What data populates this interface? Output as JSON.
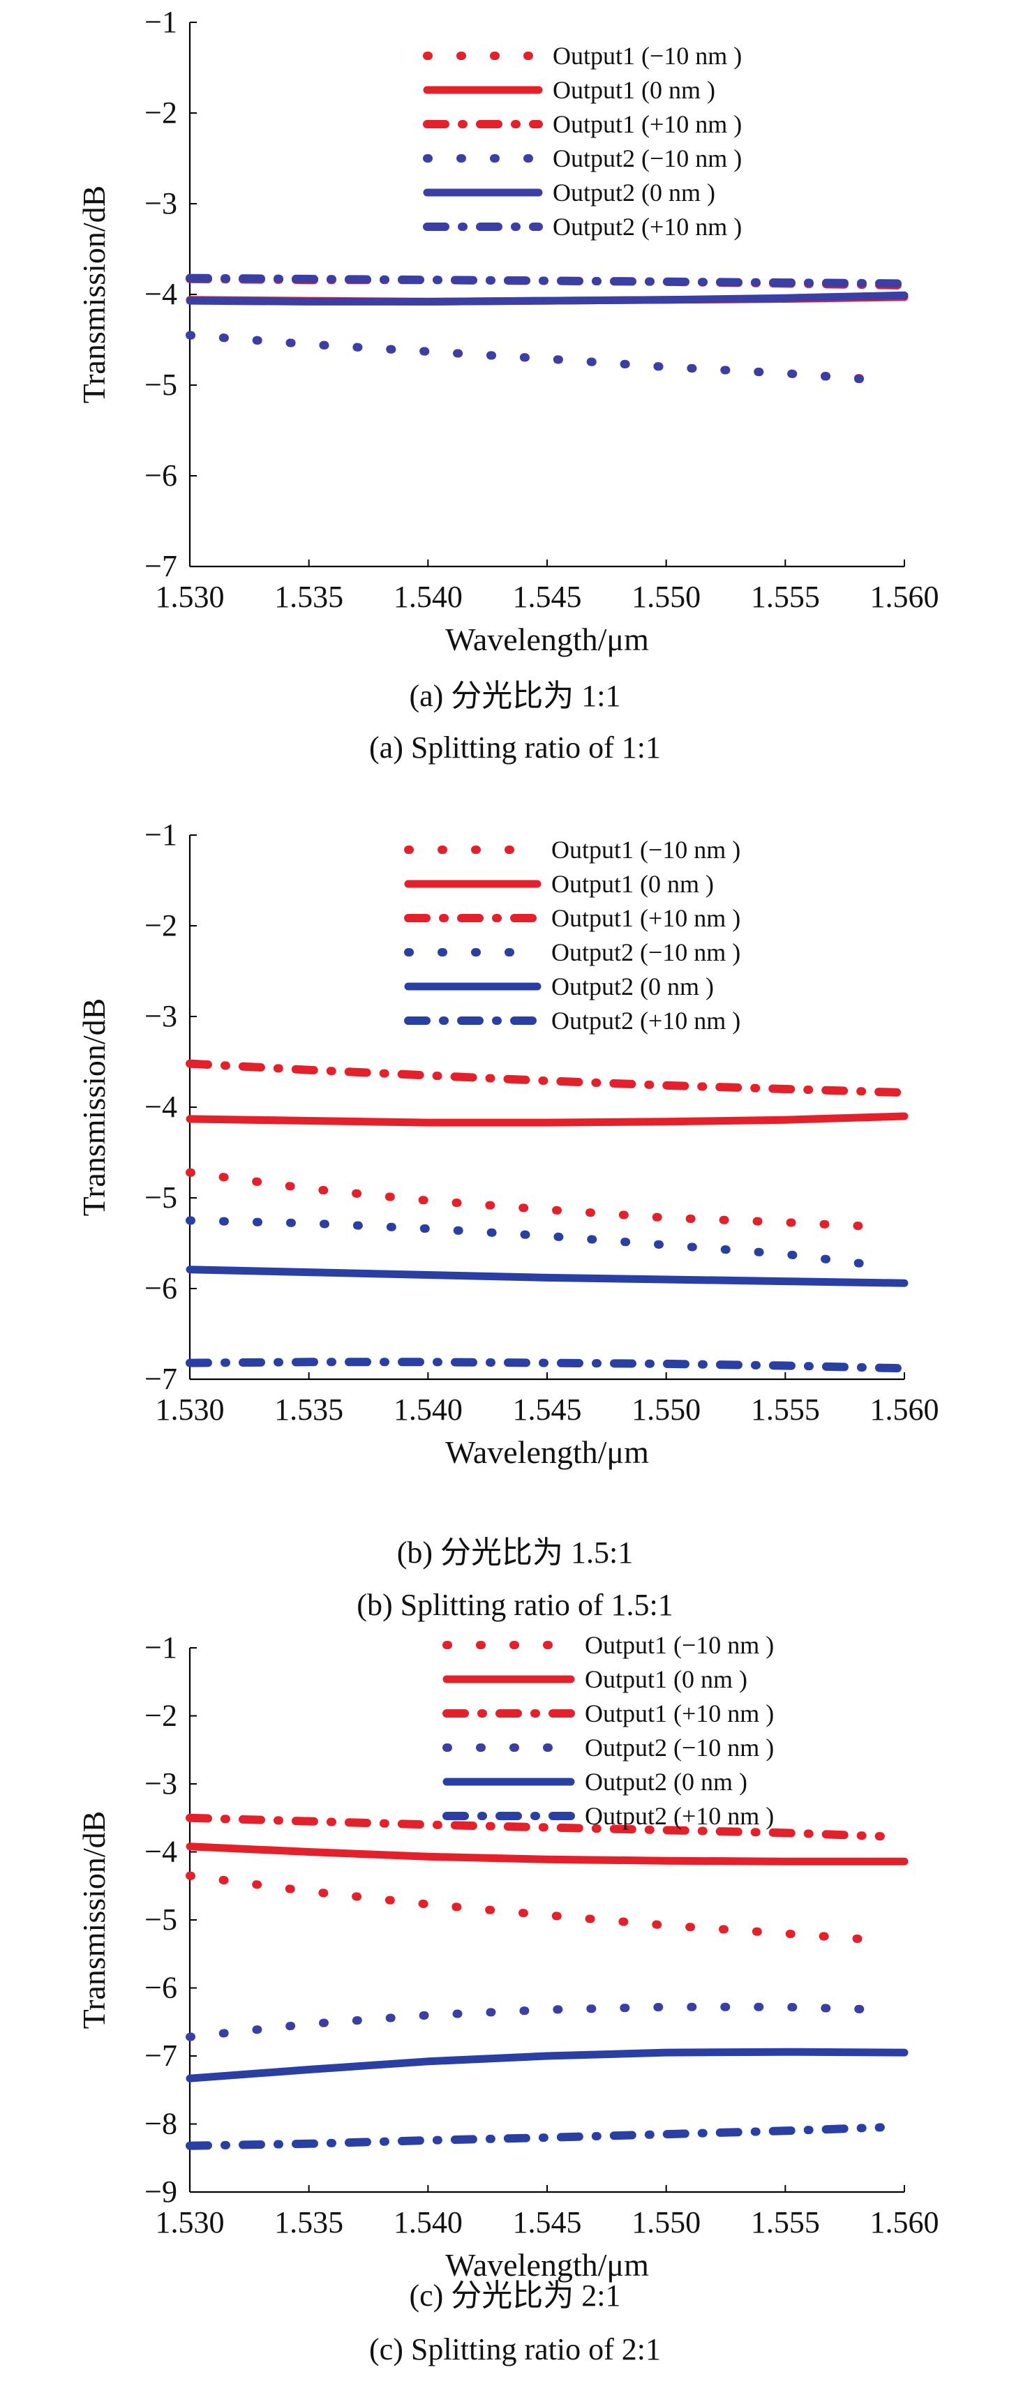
{
  "colors": {
    "output1": "#e4202b",
    "output2a": "#3a3fa6",
    "output2b": "#2a3fa3"
  },
  "chart_data": [
    {
      "type": "line",
      "xlabel": "Wavelength/μm",
      "ylabel": "Transmission/dB",
      "xlim": [
        1.53,
        1.56
      ],
      "ylim": [
        -7,
        -1
      ],
      "x_ticks": [
        "1.530",
        "1.535",
        "1.540",
        "1.545",
        "1.550",
        "1.555",
        "1.560"
      ],
      "y_ticks": [
        "−1",
        "−2",
        "−3",
        "−4",
        "−5",
        "−6",
        "−7"
      ],
      "legend_position": "top-right",
      "caption_cn": "(a) 分光比为 1:1",
      "caption_en": "(a) Splitting ratio of 1:1",
      "series": [
        {
          "name": "Output1 (−10 nm )",
          "style": "dotted",
          "color": "output1",
          "x": [
            1.53,
            1.535,
            1.54,
            1.545,
            1.55,
            1.555,
            1.559
          ],
          "y": [
            -4.45,
            -4.55,
            -4.63,
            -4.71,
            -4.8,
            -4.87,
            -4.94
          ]
        },
        {
          "name": "Output1 (0 nm )",
          "style": "solid",
          "color": "output1",
          "x": [
            1.53,
            1.535,
            1.54,
            1.545,
            1.55,
            1.555,
            1.56
          ],
          "y": [
            -4.06,
            -4.07,
            -4.08,
            -4.07,
            -4.06,
            -4.05,
            -4.03
          ]
        },
        {
          "name": "Output1 (+10 nm )",
          "style": "dashdot",
          "color": "output1",
          "x": [
            1.53,
            1.535,
            1.54,
            1.545,
            1.55,
            1.555,
            1.56
          ],
          "y": [
            -3.83,
            -3.84,
            -3.84,
            -3.85,
            -3.86,
            -3.88,
            -3.9
          ]
        },
        {
          "name": "Output2 (−10 nm )",
          "style": "dotted",
          "color": "output2a",
          "x": [
            1.53,
            1.535,
            1.54,
            1.545,
            1.55,
            1.555,
            1.559
          ],
          "y": [
            -4.45,
            -4.55,
            -4.63,
            -4.71,
            -4.8,
            -4.87,
            -4.95
          ]
        },
        {
          "name": "Output2 (0 nm )",
          "style": "solid",
          "color": "output2a",
          "x": [
            1.53,
            1.535,
            1.54,
            1.545,
            1.55,
            1.555,
            1.56
          ],
          "y": [
            -4.07,
            -4.08,
            -4.08,
            -4.07,
            -4.06,
            -4.04,
            -4.01
          ]
        },
        {
          "name": "Output2 (+10 nm )",
          "style": "dashdot",
          "color": "output2a",
          "x": [
            1.53,
            1.535,
            1.54,
            1.545,
            1.55,
            1.555,
            1.56
          ],
          "y": [
            -3.82,
            -3.83,
            -3.84,
            -3.85,
            -3.86,
            -3.87,
            -3.88
          ]
        }
      ]
    },
    {
      "type": "line",
      "xlabel": "Wavelength/μm",
      "ylabel": "Transmission/dB",
      "xlim": [
        1.53,
        1.56
      ],
      "ylim": [
        -7,
        -1
      ],
      "x_ticks": [
        "1.530",
        "1.535",
        "1.540",
        "1.545",
        "1.550",
        "1.555",
        "1.560"
      ],
      "y_ticks": [
        "−1",
        "−2",
        "−3",
        "−4",
        "−5",
        "−6",
        "−7"
      ],
      "legend_position": "top-right",
      "caption_cn": "(b) 分光比为 1.5:1",
      "caption_en": "(b) Splitting ratio of 1.5:1",
      "series": [
        {
          "name": "Output1 (−10 nm )",
          "style": "dotted",
          "color": "output1",
          "x": [
            1.53,
            1.535,
            1.54,
            1.545,
            1.55,
            1.555,
            1.559
          ],
          "y": [
            -4.72,
            -4.9,
            -5.03,
            -5.13,
            -5.22,
            -5.27,
            -5.32
          ]
        },
        {
          "name": "Output1 (0 nm )",
          "style": "solid",
          "color": "output1",
          "x": [
            1.53,
            1.535,
            1.54,
            1.545,
            1.55,
            1.555,
            1.56
          ],
          "y": [
            -4.13,
            -4.15,
            -4.17,
            -4.17,
            -4.16,
            -4.14,
            -4.1
          ]
        },
        {
          "name": "Output1 (+10 nm )",
          "style": "dashdot",
          "color": "output1",
          "x": [
            1.53,
            1.535,
            1.54,
            1.545,
            1.55,
            1.555,
            1.56
          ],
          "y": [
            -3.52,
            -3.59,
            -3.65,
            -3.71,
            -3.76,
            -3.8,
            -3.84
          ]
        },
        {
          "name": "Output2 (−10 nm )",
          "style": "dotted",
          "color": "output2b",
          "x": [
            1.53,
            1.535,
            1.54,
            1.545,
            1.55,
            1.555,
            1.559
          ],
          "y": [
            -5.25,
            -5.28,
            -5.34,
            -5.42,
            -5.52,
            -5.62,
            -5.75
          ]
        },
        {
          "name": "Output2 (0 nm )",
          "style": "solid",
          "color": "output2b",
          "x": [
            1.53,
            1.535,
            1.54,
            1.545,
            1.55,
            1.555,
            1.56
          ],
          "y": [
            -5.79,
            -5.82,
            -5.85,
            -5.88,
            -5.9,
            -5.92,
            -5.94
          ]
        },
        {
          "name": "Output2 (+10 nm )",
          "style": "dashdot",
          "color": "output2b",
          "x": [
            1.53,
            1.535,
            1.54,
            1.545,
            1.55,
            1.555,
            1.56
          ],
          "y": [
            -6.82,
            -6.81,
            -6.81,
            -6.82,
            -6.83,
            -6.85,
            -6.88
          ]
        }
      ]
    },
    {
      "type": "line",
      "xlabel": "Wavelength/μm",
      "ylabel": "Transmission/dB",
      "xlim": [
        1.53,
        1.56
      ],
      "ylim": [
        -9,
        -1
      ],
      "x_ticks": [
        "1.530",
        "1.535",
        "1.540",
        "1.545",
        "1.550",
        "1.555",
        "1.560"
      ],
      "y_ticks": [
        "−1",
        "−2",
        "−3",
        "−4",
        "−5",
        "−6",
        "−7",
        "−8",
        "−9"
      ],
      "legend_position": "top-right",
      "caption_cn": "(c) 分光比为 2:1",
      "caption_en": "(c) Splitting ratio of 2:1",
      "series": [
        {
          "name": "Output1 (−10 nm )",
          "style": "dotted",
          "color": "output1",
          "x": [
            1.53,
            1.535,
            1.54,
            1.545,
            1.55,
            1.555,
            1.559
          ],
          "y": [
            -4.35,
            -4.58,
            -4.77,
            -4.93,
            -5.08,
            -5.2,
            -5.3
          ]
        },
        {
          "name": "Output1 (0 nm )",
          "style": "solid",
          "color": "output1",
          "x": [
            1.53,
            1.535,
            1.54,
            1.545,
            1.55,
            1.555,
            1.56
          ],
          "y": [
            -3.92,
            -4.0,
            -4.07,
            -4.11,
            -4.13,
            -4.14,
            -4.14
          ]
        },
        {
          "name": "Output1 (+10 nm )",
          "style": "dashdot",
          "color": "output1",
          "x": [
            1.53,
            1.535,
            1.54,
            1.545,
            1.55,
            1.555,
            1.559
          ],
          "y": [
            -3.5,
            -3.55,
            -3.6,
            -3.64,
            -3.68,
            -3.72,
            -3.77
          ]
        },
        {
          "name": "Output2 (−10 nm )",
          "style": "dotted",
          "color": "output2a",
          "x": [
            1.53,
            1.535,
            1.54,
            1.545,
            1.55,
            1.555,
            1.559
          ],
          "y": [
            -6.72,
            -6.53,
            -6.4,
            -6.32,
            -6.28,
            -6.28,
            -6.32
          ]
        },
        {
          "name": "Output2 (0 nm )",
          "style": "solid",
          "color": "output2b",
          "x": [
            1.53,
            1.535,
            1.54,
            1.545,
            1.55,
            1.555,
            1.56
          ],
          "y": [
            -7.33,
            -7.2,
            -7.08,
            -7.0,
            -6.95,
            -6.94,
            -6.95
          ]
        },
        {
          "name": "Output2 (+10 nm )",
          "style": "dashdot",
          "color": "output2b",
          "x": [
            1.53,
            1.535,
            1.54,
            1.545,
            1.55,
            1.555,
            1.559
          ],
          "y": [
            -8.32,
            -8.29,
            -8.24,
            -8.2,
            -8.15,
            -8.1,
            -8.05
          ]
        }
      ]
    }
  ]
}
